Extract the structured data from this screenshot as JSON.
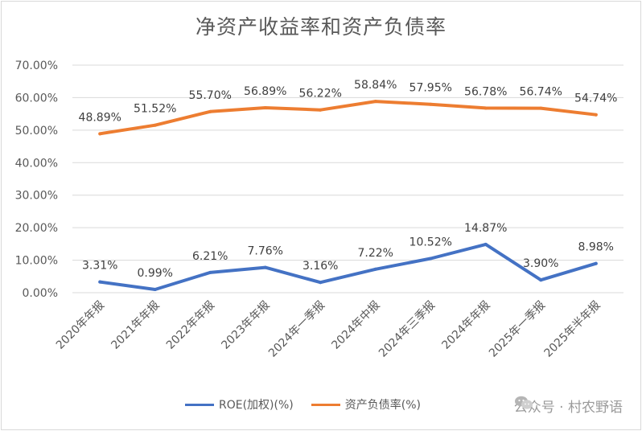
{
  "chart_data": {
    "type": "line",
    "title": "净资产收益率和资产负债率",
    "categories": [
      "2020年年报",
      "2021年年报",
      "2022年年报",
      "2023年年报",
      "2024年一季报",
      "2024年中报",
      "2024年三季报",
      "2024年年报",
      "2025年一季报",
      "2025年半年报"
    ],
    "ylim": [
      0,
      70
    ],
    "yticks": [
      "0.00%",
      "10.00%",
      "20.00%",
      "30.00%",
      "40.00%",
      "50.00%",
      "60.00%",
      "70.00%"
    ],
    "grid": true,
    "legend_position": "bottom",
    "series": [
      {
        "name": "ROE(加权)(%)",
        "color": "#4472c4",
        "values": [
          3.31,
          0.99,
          6.21,
          7.76,
          3.16,
          7.22,
          10.52,
          14.87,
          3.9,
          8.98
        ],
        "labels": [
          "3.31%",
          "0.99%",
          "6.21%",
          "7.76%",
          "3.16%",
          "7.22%",
          "10.52%",
          "14.87%",
          "3.90%",
          "8.98%"
        ]
      },
      {
        "name": "资产负债率(%)",
        "color": "#ed7d31",
        "values": [
          48.89,
          51.52,
          55.7,
          56.89,
          56.22,
          58.84,
          57.95,
          56.78,
          56.74,
          54.74
        ],
        "labels": [
          "48.89%",
          "51.52%",
          "55.70%",
          "56.89%",
          "56.22%",
          "58.84%",
          "57.95%",
          "56.78%",
          "56.74%",
          "54.74%"
        ]
      }
    ]
  },
  "watermark": {
    "text": "公众号 · 村农野语",
    "icon": "wechat-icon"
  }
}
